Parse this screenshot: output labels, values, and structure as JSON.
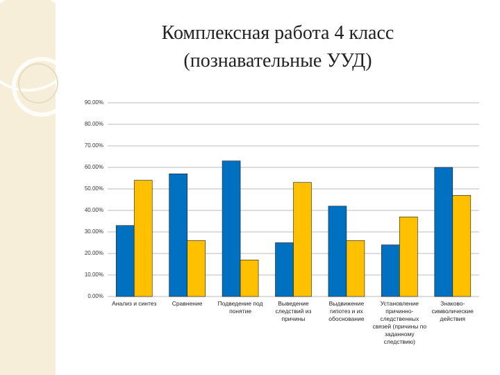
{
  "chart_data": {
    "type": "bar",
    "title": "Комплексная работа 4 класс",
    "subtitle": "(познавательные УУД)",
    "categories": [
      "Анализ и синтез",
      "Сравнение",
      "Подведение под понятие",
      "Выведение следствий из причины",
      "Выдвижение гипотез и их обоснование",
      "Установление причинно-следственных связей (причины по заданному следствию)",
      "Знаково-символические действия"
    ],
    "series": [
      {
        "color": "#0070c0",
        "values": [
          33,
          57,
          63,
          25,
          42,
          24,
          60
        ]
      },
      {
        "color": "#ffc000",
        "values": [
          54,
          26,
          17,
          53,
          26,
          37,
          47
        ]
      }
    ],
    "ylim": [
      0,
      90
    ],
    "yticks": [
      {
        "value": 0,
        "label": "0.00%"
      },
      {
        "value": 10,
        "label": "10.00%"
      },
      {
        "value": 20,
        "label": "20.00%"
      },
      {
        "value": 30,
        "label": "30.00%"
      },
      {
        "value": 40,
        "label": "40.00%"
      },
      {
        "value": 50,
        "label": "50.00%"
      },
      {
        "value": 60,
        "label": "60.00%"
      },
      {
        "value": 70,
        "label": "70.00%"
      },
      {
        "value": 80,
        "label": "80.00%"
      },
      {
        "value": 90,
        "label": "90.00%"
      }
    ],
    "grid": true
  }
}
